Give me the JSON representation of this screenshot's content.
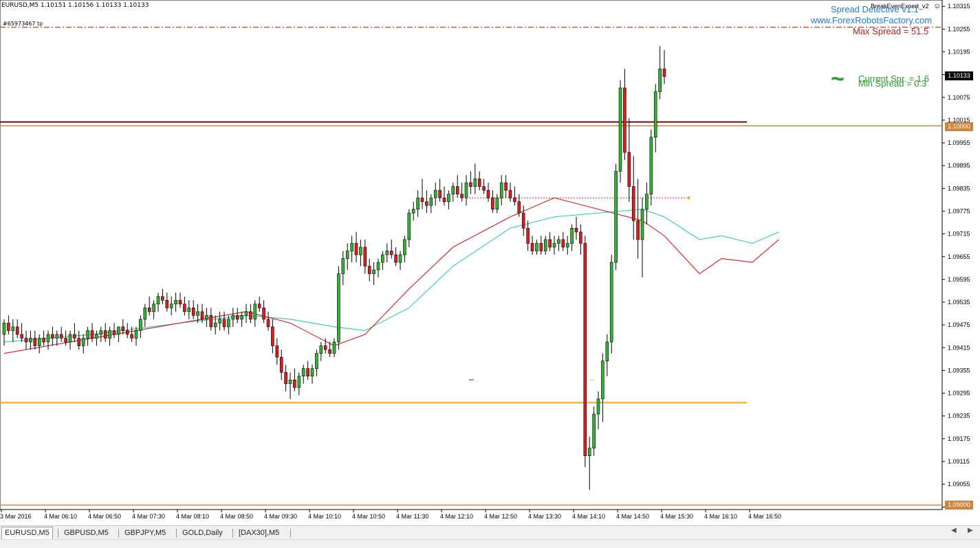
{
  "header": {
    "symbol_line": "EURUSD,M5  1.10151 1.10156 1.10133 1.10133",
    "order_label": "#65973467 tp"
  },
  "overlay": {
    "ea_name": "BreakEvenExpert_v2",
    "ea_icon": "smiley-icon",
    "spread_title": "Spread Detective v1.1",
    "website": "www.ForexRobotsFactory.com",
    "max_spread": "Max Spread = 51.5",
    "current_spread": "Current Spr. = 1.6",
    "min_spread": "Min Spread = 0.3",
    "wave_icon": "tilde-icon"
  },
  "colors": {
    "bull": "#32b432",
    "bear": "#dc1e1e",
    "ma_fast": "#dc2828",
    "ma_slow": "#3cd2b4",
    "level_orange": "#ffa500",
    "level_darkred": "#800000",
    "level_peru": "#cd853f",
    "max_spread_line": "#c85a3c",
    "spread_blue": "#1e78dc",
    "spread_red": "#b41e1e",
    "spread_green": "#28a028"
  },
  "price_labels": {
    "current": "1.10133",
    "level_100": "1.10000",
    "level_090": "1.09000"
  },
  "time_labels": [
    "3 Mar 2016",
    "4 Mar 06:10",
    "4 Mar 06:50",
    "4 Mar 07:30",
    "4 Mar 08:10",
    "4 Mar 08:50",
    "4 Mar 09:30",
    "4 Mar 10:10",
    "4 Mar 10:50",
    "4 Mar 11:30",
    "4 Mar 12:10",
    "4 Mar 12:50",
    "4 Mar 13:30",
    "4 Mar 14:10",
    "4 Mar 14:50",
    "4 Mar 15:30",
    "4 Mar 16:10",
    "4 Mar 16:50"
  ],
  "tabs": [
    {
      "label": "EURUSD,M5",
      "active": true
    },
    {
      "label": "GBPUSD,M5",
      "active": false
    },
    {
      "label": "GBPJPY,M5",
      "active": false
    },
    {
      "label": "GOLD,Daily",
      "active": false
    },
    {
      "label": "[DAX30],M5",
      "active": false
    }
  ],
  "chart_data": {
    "type": "candlestick",
    "symbol": "EURUSD",
    "timeframe": "M5",
    "ylim": [
      1.09,
      1.1031
    ],
    "y_ticks": [
      "1.10315",
      "1.10255",
      "1.10195",
      "1.10135",
      "1.10075",
      "1.10015",
      "1.09955",
      "1.09895",
      "1.09835",
      "1.09775",
      "1.09715",
      "1.09655",
      "1.09595",
      "1.09535",
      "1.09475",
      "1.09415",
      "1.09355",
      "1.09295",
      "1.09235",
      "1.09175",
      "1.09115",
      "1.09055",
      "1.08995"
    ],
    "levels": [
      {
        "price": 1.1026,
        "style": "dashdot",
        "color": "max_spread_line"
      },
      {
        "price": 1.1001,
        "style": "solid",
        "color": "level_darkred"
      },
      {
        "price": 1.1,
        "style": "solid",
        "color": "level_peru"
      },
      {
        "price": 1.0927,
        "style": "solid",
        "color": "level_orange"
      },
      {
        "price": 1.09,
        "style": "solid",
        "color": "level_peru"
      }
    ],
    "tp_line": {
      "price": 1.0981,
      "from_bar": 105,
      "to_bar": 155
    },
    "candles": [
      [
        1.0945,
        1.0949,
        1.0942,
        1.0948
      ],
      [
        1.0948,
        1.095,
        1.0945,
        1.0946
      ],
      [
        1.0946,
        1.0949,
        1.0943,
        1.0947
      ],
      [
        1.0947,
        1.0949,
        1.0944,
        1.0945
      ],
      [
        1.0945,
        1.0948,
        1.0943,
        1.0944
      ],
      [
        1.0944,
        1.0946,
        1.0941,
        1.0943
      ],
      [
        1.0943,
        1.0946,
        1.0941,
        1.0944
      ],
      [
        1.0944,
        1.0946,
        1.0941,
        1.0942
      ],
      [
        1.0942,
        1.0945,
        1.094,
        1.0944
      ],
      [
        1.0944,
        1.0946,
        1.0942,
        1.0943
      ],
      [
        1.0943,
        1.0946,
        1.0941,
        1.0945
      ],
      [
        1.0945,
        1.0947,
        1.0942,
        1.0944
      ],
      [
        1.0944,
        1.0946,
        1.0942,
        1.0945
      ],
      [
        1.0945,
        1.0947,
        1.0943,
        1.0944
      ],
      [
        1.0944,
        1.0946,
        1.0942,
        1.0943
      ],
      [
        1.0943,
        1.0946,
        1.0941,
        1.0945
      ],
      [
        1.0945,
        1.0948,
        1.0943,
        1.0944
      ],
      [
        1.0944,
        1.0946,
        1.0941,
        1.0942
      ],
      [
        1.0942,
        1.0945,
        1.094,
        1.0944
      ],
      [
        1.0944,
        1.0947,
        1.0942,
        1.0946
      ],
      [
        1.0946,
        1.0948,
        1.0943,
        1.0944
      ],
      [
        1.0944,
        1.0946,
        1.0942,
        1.0945
      ],
      [
        1.0945,
        1.0947,
        1.0943,
        1.0946
      ],
      [
        1.0946,
        1.0948,
        1.0943,
        1.0944
      ],
      [
        1.0944,
        1.0947,
        1.0942,
        1.0946
      ],
      [
        1.0946,
        1.0948,
        1.0944,
        1.0945
      ],
      [
        1.0945,
        1.0947,
        1.0943,
        1.0947
      ],
      [
        1.0947,
        1.0949,
        1.0945,
        1.0946
      ],
      [
        1.0946,
        1.0948,
        1.0944,
        1.0945
      ],
      [
        1.0945,
        1.0947,
        1.0943,
        1.0944
      ],
      [
        1.0944,
        1.0947,
        1.0942,
        1.0946
      ],
      [
        1.0946,
        1.095,
        1.0944,
        1.0949
      ],
      [
        1.0949,
        1.0953,
        1.0947,
        1.0952
      ],
      [
        1.0952,
        1.0955,
        1.095,
        1.0951
      ],
      [
        1.0951,
        1.0954,
        1.0949,
        1.0953
      ],
      [
        1.0953,
        1.0956,
        1.0951,
        1.0955
      ],
      [
        1.0955,
        1.0957,
        1.0953,
        1.0954
      ],
      [
        1.0954,
        1.0956,
        1.0951,
        1.0952
      ],
      [
        1.0952,
        1.0955,
        1.095,
        1.0953
      ],
      [
        1.0953,
        1.0956,
        1.0951,
        1.0954
      ],
      [
        1.0954,
        1.0956,
        1.0952,
        1.0953
      ],
      [
        1.0953,
        1.0955,
        1.095,
        1.0951
      ],
      [
        1.0951,
        1.0954,
        1.0949,
        1.0952
      ],
      [
        1.0952,
        1.0954,
        1.0949,
        1.095
      ],
      [
        1.095,
        1.0953,
        1.0948,
        1.0951
      ],
      [
        1.0951,
        1.0953,
        1.0948,
        1.0949
      ],
      [
        1.0949,
        1.0952,
        1.0947,
        1.095
      ],
      [
        1.095,
        1.0952,
        1.0946,
        1.0947
      ],
      [
        1.0947,
        1.095,
        1.0945,
        1.0948
      ],
      [
        1.0948,
        1.0951,
        1.0946,
        1.0949
      ],
      [
        1.0949,
        1.0951,
        1.0946,
        1.0947
      ],
      [
        1.0947,
        1.095,
        1.0945,
        1.0949
      ],
      [
        1.0949,
        1.0952,
        1.0947,
        1.095
      ],
      [
        1.095,
        1.0952,
        1.0948,
        1.0949
      ],
      [
        1.0949,
        1.0951,
        1.0947,
        1.095
      ],
      [
        1.095,
        1.0953,
        1.0948,
        1.0951
      ],
      [
        1.0951,
        1.0953,
        1.0948,
        1.0949
      ],
      [
        1.0949,
        1.0954,
        1.0947,
        1.0953
      ],
      [
        1.0953,
        1.0955,
        1.0951,
        1.0952
      ],
      [
        1.0952,
        1.0954,
        1.0948,
        1.0949
      ],
      [
        1.0949,
        1.0951,
        1.0946,
        1.0947
      ],
      [
        1.0947,
        1.0949,
        1.094,
        1.0942
      ],
      [
        1.0942,
        1.0944,
        1.0937,
        1.0939
      ],
      [
        1.0939,
        1.0941,
        1.0933,
        1.0935
      ],
      [
        1.0935,
        1.0937,
        1.093,
        1.0932
      ],
      [
        1.0932,
        1.0935,
        1.0928,
        1.0933
      ],
      [
        1.0933,
        1.0936,
        1.093,
        1.0931
      ],
      [
        1.0931,
        1.0935,
        1.0929,
        1.0934
      ],
      [
        1.0934,
        1.0937,
        1.0932,
        1.0936
      ],
      [
        1.0936,
        1.0938,
        1.0933,
        1.0934
      ],
      [
        1.0934,
        1.0937,
        1.0932,
        1.0936
      ],
      [
        1.0936,
        1.0941,
        1.0934,
        1.094
      ],
      [
        1.094,
        1.0943,
        1.0938,
        1.0942
      ],
      [
        1.0942,
        1.0944,
        1.094,
        1.0941
      ],
      [
        1.0941,
        1.0943,
        1.0939,
        1.094
      ],
      [
        1.094,
        1.0944,
        1.0939,
        1.0943
      ],
      [
        1.0943,
        1.0963,
        1.0941,
        1.0961
      ],
      [
        1.0961,
        1.0967,
        1.0958,
        1.0965
      ],
      [
        1.0965,
        1.0969,
        1.0962,
        1.0967
      ],
      [
        1.0967,
        1.0971,
        1.0964,
        1.0969
      ],
      [
        1.0969,
        1.0972,
        1.0964,
        1.0966
      ],
      [
        1.0966,
        1.097,
        1.0963,
        1.0968
      ],
      [
        1.0968,
        1.097,
        1.0961,
        1.0963
      ],
      [
        1.0963,
        1.0965,
        1.0959,
        1.0961
      ],
      [
        1.0961,
        1.0964,
        1.0958,
        1.0962
      ],
      [
        1.0962,
        1.0965,
        1.096,
        1.0964
      ],
      [
        1.0964,
        1.0967,
        1.0962,
        1.0966
      ],
      [
        1.0966,
        1.0969,
        1.0964,
        1.0967
      ],
      [
        1.0967,
        1.097,
        1.0965,
        1.0966
      ],
      [
        1.0966,
        1.0968,
        1.0963,
        1.0964
      ],
      [
        1.0964,
        1.0967,
        1.0962,
        1.0966
      ],
      [
        1.0966,
        1.0971,
        1.0964,
        1.097
      ],
      [
        1.097,
        1.0978,
        1.0968,
        1.0977
      ],
      [
        1.0977,
        1.098,
        1.0975,
        1.0978
      ],
      [
        1.0978,
        1.0983,
        1.0976,
        1.0981
      ],
      [
        1.0981,
        1.0986,
        1.0978,
        1.098
      ],
      [
        1.098,
        1.0983,
        1.0977,
        1.0979
      ],
      [
        1.0979,
        1.0982,
        1.0977,
        1.0981
      ],
      [
        1.0981,
        1.0985,
        1.0979,
        1.0983
      ],
      [
        1.0983,
        1.0986,
        1.098,
        1.0981
      ],
      [
        1.0981,
        1.0984,
        1.0979,
        1.098
      ],
      [
        1.098,
        1.0983,
        1.0978,
        1.0982
      ],
      [
        1.0982,
        1.0985,
        1.098,
        1.0984
      ],
      [
        1.0984,
        1.0987,
        1.0981,
        1.0982
      ],
      [
        1.0982,
        1.0985,
        1.098,
        1.0981
      ],
      [
        1.0981,
        1.0987,
        1.0979,
        1.0985
      ],
      [
        1.0985,
        1.0988,
        1.0982,
        1.0984
      ],
      [
        1.0984,
        1.099,
        1.0982,
        1.0986
      ],
      [
        1.0986,
        1.0988,
        1.0983,
        1.0984
      ],
      [
        1.0984,
        1.0986,
        1.0982,
        1.0983
      ],
      [
        1.0983,
        1.0985,
        1.098,
        1.0981
      ],
      [
        1.0981,
        1.0983,
        1.0977,
        1.0978
      ],
      [
        1.0978,
        1.0982,
        1.0977,
        1.0981
      ],
      [
        1.0981,
        1.0987,
        1.0979,
        1.0985
      ],
      [
        1.0985,
        1.0987,
        1.0981,
        1.0983
      ],
      [
        1.0983,
        1.0985,
        1.098,
        1.0981
      ],
      [
        1.0981,
        1.0984,
        1.0979,
        1.098
      ],
      [
        1.098,
        1.0982,
        1.0976,
        1.0977
      ],
      [
        1.0977,
        1.0979,
        1.0971,
        1.0973
      ],
      [
        1.0973,
        1.0975,
        1.0967,
        1.0969
      ],
      [
        1.0969,
        1.0971,
        1.0966,
        1.0967
      ],
      [
        1.0967,
        1.097,
        1.0966,
        1.0969
      ],
      [
        1.0969,
        1.0971,
        1.0966,
        1.0967
      ],
      [
        1.0967,
        1.0971,
        1.0966,
        1.097
      ],
      [
        1.097,
        1.0972,
        1.0967,
        1.0968
      ],
      [
        1.0968,
        1.0971,
        1.0966,
        1.0969
      ],
      [
        1.0969,
        1.0971,
        1.0967,
        1.097
      ],
      [
        1.097,
        1.0972,
        1.0967,
        1.0968
      ],
      [
        1.0968,
        1.0971,
        1.0966,
        1.0969
      ],
      [
        1.0969,
        1.0974,
        1.0967,
        1.0973
      ],
      [
        1.0973,
        1.0976,
        1.097,
        1.0972
      ],
      [
        1.0972,
        1.0974,
        1.0966,
        1.0969
      ],
      [
        1.0969,
        1.0971,
        1.091,
        1.0913
      ],
      [
        1.0913,
        1.0918,
        1.0904,
        1.0915
      ],
      [
        1.0915,
        1.0926,
        1.0913,
        1.0924
      ],
      [
        1.0924,
        1.093,
        1.092,
        1.0928
      ],
      [
        1.0928,
        1.094,
        1.0922,
        1.0938
      ],
      [
        1.0938,
        1.0945,
        1.0934,
        1.0943
      ],
      [
        1.0943,
        1.0966,
        1.094,
        1.0964
      ],
      [
        1.0964,
        1.099,
        1.0962,
        1.0988
      ],
      [
        1.0988,
        1.1012,
        1.0985,
        1.101
      ],
      [
        1.101,
        1.1015,
        1.0991,
        1.0993
      ],
      [
        1.0993,
        1.1002,
        1.098,
        1.0984
      ],
      [
        1.0984,
        1.0992,
        1.097,
        1.0975
      ],
      [
        1.0975,
        1.0986,
        1.0965,
        1.097
      ],
      [
        1.097,
        1.0981,
        1.096,
        1.0978
      ],
      [
        1.0978,
        1.0985,
        1.0974,
        1.0982
      ],
      [
        1.0982,
        1.0999,
        1.0979,
        1.0997
      ],
      [
        1.0997,
        1.1011,
        1.0993,
        1.1009
      ],
      [
        1.1009,
        1.1021,
        1.1007,
        1.1015
      ],
      [
        1.1015,
        1.102,
        1.1011,
        1.1013
      ]
    ],
    "ma_fast": [
      [
        0,
        1.094
      ],
      [
        20,
        1.0944
      ],
      [
        40,
        1.0948
      ],
      [
        55,
        1.0951
      ],
      [
        65,
        1.0948
      ],
      [
        75,
        1.0942
      ],
      [
        82,
        1.0945
      ],
      [
        92,
        1.0957
      ],
      [
        102,
        1.0968
      ],
      [
        115,
        1.0976
      ],
      [
        125,
        1.0981
      ],
      [
        135,
        1.0978
      ],
      [
        145,
        1.0975
      ],
      [
        150,
        1.0971
      ],
      [
        158,
        1.0961
      ],
      [
        163,
        1.0965
      ],
      [
        170,
        1.0964
      ],
      [
        176,
        1.097
      ]
    ],
    "ma_slow": [
      [
        0,
        1.0943
      ],
      [
        20,
        1.0945
      ],
      [
        40,
        1.0948
      ],
      [
        55,
        1.095
      ],
      [
        65,
        1.0949
      ],
      [
        75,
        1.0947
      ],
      [
        82,
        1.0946
      ],
      [
        92,
        1.0952
      ],
      [
        102,
        1.0963
      ],
      [
        115,
        1.0973
      ],
      [
        125,
        1.0976
      ],
      [
        135,
        1.0977
      ],
      [
        145,
        1.0978
      ],
      [
        150,
        1.0976
      ],
      [
        158,
        1.097
      ],
      [
        163,
        1.0971
      ],
      [
        170,
        1.0969
      ],
      [
        176,
        1.0972
      ]
    ]
  }
}
